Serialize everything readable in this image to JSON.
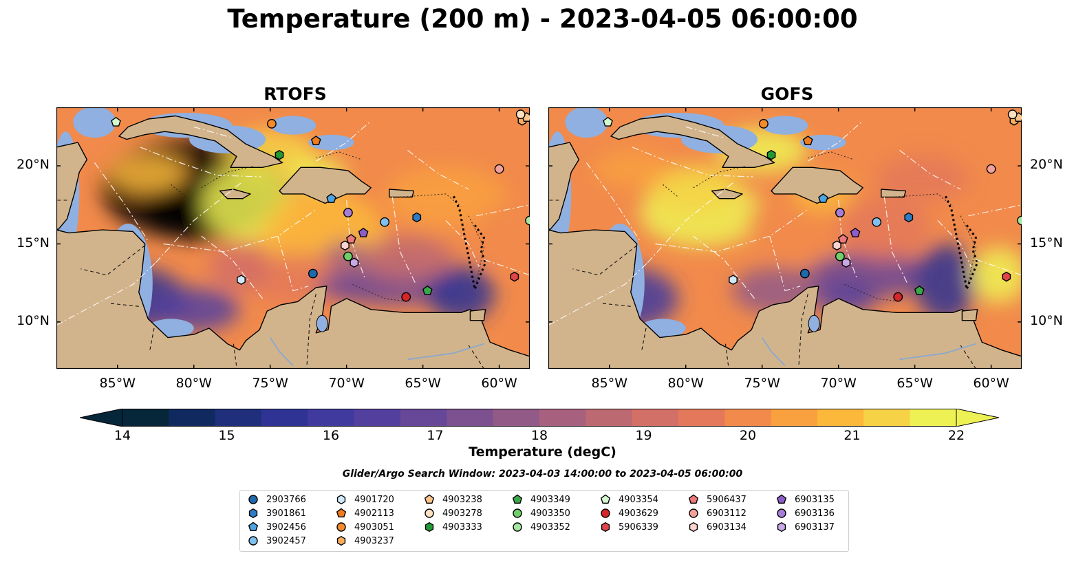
{
  "title": "Temperature (200 m) - 2023-04-05 06:00:00",
  "panels": [
    {
      "title": "RTOFS",
      "variant": "rtofs"
    },
    {
      "title": "GOFS",
      "variant": "gofs"
    }
  ],
  "axes": {
    "lon_range": [
      -89,
      -58
    ],
    "lat_range": [
      7,
      23.75
    ],
    "x_ticks": [
      {
        "lon": -85,
        "label": "85°W"
      },
      {
        "lon": -80,
        "label": "80°W"
      },
      {
        "lon": -75,
        "label": "75°W"
      },
      {
        "lon": -70,
        "label": "70°W"
      },
      {
        "lon": -65,
        "label": "65°W"
      },
      {
        "lon": -60,
        "label": "60°W"
      }
    ],
    "y_ticks": [
      {
        "lat": 20,
        "label": "20°N"
      },
      {
        "lat": 15,
        "label": "15°N"
      },
      {
        "lat": 10,
        "label": "10°N"
      }
    ]
  },
  "colorbar": {
    "label": "Temperature (degC)",
    "min": 14,
    "max": 22,
    "step": 0.5,
    "ticks": [
      "14",
      "15",
      "16",
      "17",
      "18",
      "19",
      "20",
      "21",
      "22"
    ],
    "colors": [
      "#06263a",
      "#102a60",
      "#1f2f7c",
      "#2f3393",
      "#403a9f",
      "#533f9d",
      "#674797",
      "#7d508f",
      "#925a86",
      "#a7617e",
      "#bd6972",
      "#d26f66",
      "#e4785a",
      "#f18a4b",
      "#f9a03f",
      "#fcb83b",
      "#f6d346",
      "#eef154"
    ],
    "extend_low_color": "#06263a",
    "extend_high_color": "#eef154"
  },
  "search_window": "Glider/Argo Search Window: 2023-04-03 14:00:00 to 2023-04-05 06:00:00",
  "land_color": "#d2b48c",
  "shelf_color": "#8fb0e0",
  "floats": [
    {
      "id": "2903766",
      "marker": "circle",
      "color": "#1f6aae",
      "lon": -72.2,
      "lat": 13.1
    },
    {
      "id": "3901861",
      "marker": "hexagon",
      "color": "#2e7dc4",
      "lon": -65.4,
      "lat": 16.7
    },
    {
      "id": "3902456",
      "marker": "pentagon",
      "color": "#4fa3e0",
      "lon": -71.0,
      "lat": 17.9
    },
    {
      "id": "3902457",
      "marker": "circle",
      "color": "#7fc1ee",
      "lon": -67.5,
      "lat": 16.4
    },
    {
      "id": "4901720",
      "marker": "hexagon",
      "color": "#cfe9fb",
      "lon": -76.9,
      "lat": 12.7
    },
    {
      "id": "4902113",
      "marker": "pentagon",
      "color": "#f07c1e",
      "lon": -72.0,
      "lat": 21.6
    },
    {
      "id": "4903051",
      "marker": "circle",
      "color": "#f58a2a",
      "lon": -74.9,
      "lat": 22.7
    },
    {
      "id": "4903237",
      "marker": "hexagon",
      "color": "#f9ad5c",
      "lon": -58.5,
      "lat": 22.9
    },
    {
      "id": "4903238",
      "marker": "pentagon",
      "color": "#fbc48b",
      "lon": -58.2,
      "lat": 23.1
    },
    {
      "id": "4903278",
      "marker": "circle",
      "color": "#fde0c2",
      "lon": -58.6,
      "lat": 23.3
    },
    {
      "id": "4903333",
      "marker": "hexagon",
      "color": "#219a35",
      "lon": -74.4,
      "lat": 20.7
    },
    {
      "id": "4903349",
      "marker": "pentagon",
      "color": "#3aa84a",
      "lon": -64.7,
      "lat": 12.0
    },
    {
      "id": "4903350",
      "marker": "circle",
      "color": "#6fcf6a",
      "lon": -69.9,
      "lat": 14.2
    },
    {
      "id": "4903352",
      "marker": "circle",
      "color": "#a5e6a0",
      "lon": -58.0,
      "lat": 16.5
    },
    {
      "id": "4903354",
      "marker": "pentagon",
      "color": "#d4f7cf",
      "lon": -85.1,
      "lat": 22.8
    },
    {
      "id": "4903629",
      "marker": "circle",
      "color": "#d62728",
      "lon": -66.1,
      "lat": 11.6
    },
    {
      "id": "5906339",
      "marker": "hexagon",
      "color": "#e0454a",
      "lon": -59.0,
      "lat": 12.9
    },
    {
      "id": "5906437",
      "marker": "pentagon",
      "color": "#ec7a7c",
      "lon": -69.7,
      "lat": 15.3
    },
    {
      "id": "6903112",
      "marker": "circle",
      "color": "#f2a19a",
      "lon": -60.0,
      "lat": 19.8
    },
    {
      "id": "6903134",
      "marker": "hexagon",
      "color": "#fbd3cf",
      "lon": -70.1,
      "lat": 14.9
    },
    {
      "id": "6903135",
      "marker": "pentagon",
      "color": "#8e5ec8",
      "lon": -68.9,
      "lat": 15.7
    },
    {
      "id": "6903136",
      "marker": "circle",
      "color": "#a77ed6",
      "lon": -69.9,
      "lat": 17.0
    },
    {
      "id": "6903137",
      "marker": "hexagon",
      "color": "#c8a9e6",
      "lon": -69.5,
      "lat": 13.8
    }
  ]
}
